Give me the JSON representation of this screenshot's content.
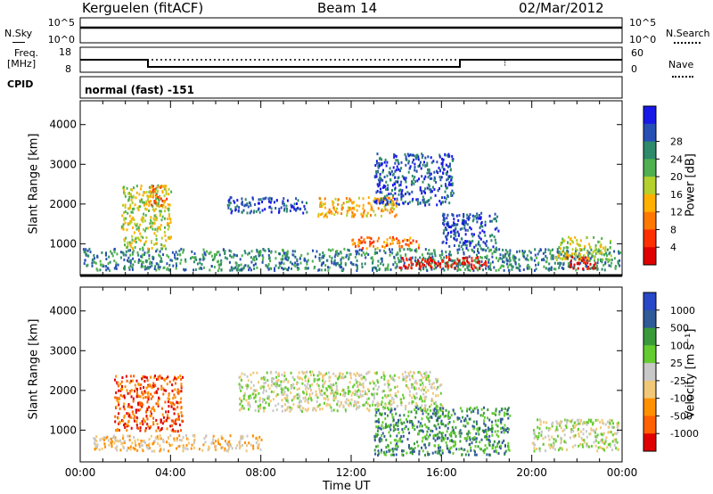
{
  "header": {
    "station": "Kerguelen (fitACF)",
    "beam": "Beam 14",
    "date": "02/Mar/2012"
  },
  "strips": {
    "nsky": {
      "label": "N.Sky",
      "ytop": "10^5",
      "ybot": "10^0",
      "right_label": "N.Search",
      "right_ytop": "10^5",
      "right_ybot": "10^0"
    },
    "freq": {
      "label_line1": "Freq.",
      "label_line2": "[MHz]",
      "ytop": "18",
      "ybot": "8",
      "right_label": "Nave",
      "right_ytop": "60",
      "right_ybot": "0"
    },
    "cpid": {
      "label": "CPID",
      "text": "normal (fast) -151"
    }
  },
  "x_axis": {
    "title": "Time UT",
    "ticks": [
      "00:00",
      "04:00",
      "08:00",
      "12:00",
      "16:00",
      "20:00",
      "00:00"
    ]
  },
  "chart_data": [
    {
      "type": "heatmap",
      "name": "power-panel",
      "ylabel": "Slant Range [km]",
      "y_ticks": [
        1000,
        2000,
        3000,
        4000
      ],
      "ylim": [
        200,
        4600
      ],
      "xlim_hours": [
        0,
        24
      ],
      "colorbar": {
        "title": "Power [dB]",
        "ticks": [
          "4",
          "8",
          "12",
          "16",
          "20",
          "24",
          "28"
        ],
        "colors": [
          "#1818e8",
          "#2850b4",
          "#2e8a6a",
          "#50b050",
          "#b4d02c",
          "#ffb000",
          "#ff7800",
          "#ff3000",
          "#e00000"
        ]
      },
      "echo_regions": [
        {
          "t": [
            0.1,
            23.9
          ],
          "r": [
            350,
            900
          ],
          "level": 2,
          "note": "near-range band"
        },
        {
          "t": [
            1.8,
            4.0
          ],
          "r": [
            900,
            2500
          ],
          "level": 4
        },
        {
          "t": [
            3.0,
            3.8
          ],
          "r": [
            1900,
            2500
          ],
          "level": 6
        },
        {
          "t": [
            6.5,
            10.0
          ],
          "r": [
            1800,
            2200
          ],
          "level": 1
        },
        {
          "t": [
            10.5,
            14.0
          ],
          "r": [
            1700,
            2200
          ],
          "level": 5
        },
        {
          "t": [
            12.0,
            15.0
          ],
          "r": [
            900,
            1200
          ],
          "level": 6
        },
        {
          "t": [
            13.0,
            16.5
          ],
          "r": [
            2000,
            3300
          ],
          "level": 1
        },
        {
          "t": [
            14.0,
            18.0
          ],
          "r": [
            400,
            700
          ],
          "level": 8,
          "note": "strong near-range echo"
        },
        {
          "t": [
            16.0,
            18.5
          ],
          "r": [
            900,
            1800
          ],
          "level": 1
        },
        {
          "t": [
            21.0,
            23.5
          ],
          "r": [
            600,
            1200
          ],
          "level": 4
        },
        {
          "t": [
            21.5,
            22.8
          ],
          "r": [
            400,
            700
          ],
          "level": 8
        }
      ]
    },
    {
      "type": "heatmap",
      "name": "velocity-panel",
      "ylabel": "Slant Range [km]",
      "y_ticks": [
        1000,
        2000,
        3000,
        4000
      ],
      "ylim": [
        200,
        4600
      ],
      "xlim_hours": [
        0,
        24
      ],
      "colorbar": {
        "title": "Velocity [m s⁻¹]",
        "ticks": [
          "1000",
          "500",
          "100",
          "25",
          "-25",
          "-100",
          "-500",
          "-1000"
        ],
        "colors": [
          "#2848c8",
          "#305a98",
          "#3a9a3a",
          "#64cc30",
          "#c8c8c8",
          "#f0c878",
          "#ff9000",
          "#ff6000",
          "#e00000"
        ]
      },
      "echo_regions": [
        {
          "t": [
            1.5,
            4.5
          ],
          "r": [
            1000,
            2400
          ],
          "level": 7,
          "note": "strong negative velocities"
        },
        {
          "t": [
            0.5,
            8.0
          ],
          "r": [
            500,
            900
          ],
          "level": 5
        },
        {
          "t": [
            7.0,
            16.0
          ],
          "r": [
            1500,
            2500
          ],
          "level": 4
        },
        {
          "t": [
            13.0,
            19.0
          ],
          "r": [
            400,
            1600
          ],
          "level": 2,
          "note": "positive velocities"
        },
        {
          "t": [
            20.0,
            23.8
          ],
          "r": [
            500,
            1300
          ],
          "level": 4
        }
      ]
    }
  ]
}
